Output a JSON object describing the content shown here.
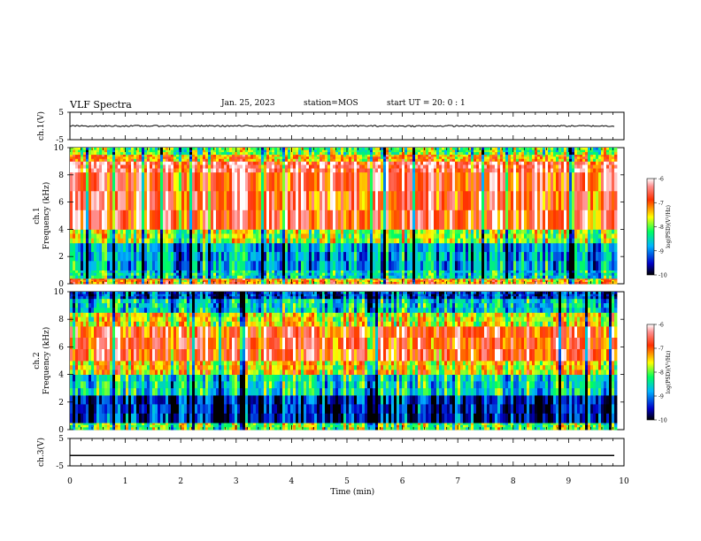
{
  "header": {
    "title": "VLF Spectra",
    "date": "Jan. 25, 2023",
    "station": "station=MOS",
    "start_ut": "start UT =  20: 0  : 1"
  },
  "chart_data": [
    {
      "type": "line",
      "name": "ch1-waveform",
      "ylabel": "ch.1(V)",
      "ylim": [
        -5,
        5
      ],
      "yticks": [
        "5",
        "-5"
      ],
      "series": [
        {
          "description": "near-constant trace with small noise",
          "approx_value": 0
        }
      ]
    },
    {
      "type": "heatmap",
      "name": "ch1-spectrogram",
      "ylabel_line1": "ch.1",
      "ylabel_line2": "Frequency (kHz)",
      "ylim": [
        0,
        10
      ],
      "yticks": [
        "0",
        "2",
        "4",
        "6",
        "8",
        "10"
      ],
      "colorbar": {
        "label": "log(PSD)(V²/Hz)",
        "range": [
          -10,
          -6
        ],
        "ticks": [
          "-6",
          "-7",
          "-8",
          "-9",
          "-10"
        ]
      },
      "bands_khz_log_psd": [
        [
          0.0,
          0.4,
          -7.2
        ],
        [
          0.4,
          1.0,
          -8.5
        ],
        [
          1.0,
          3.0,
          -8.8
        ],
        [
          3.0,
          4.0,
          -7.8
        ],
        [
          4.0,
          8.2,
          -6.7
        ],
        [
          8.2,
          9.0,
          -6.5
        ],
        [
          9.0,
          9.5,
          -7.3
        ],
        [
          9.5,
          10.0,
          -8.0
        ]
      ]
    },
    {
      "type": "heatmap",
      "name": "ch2-spectrogram",
      "ylabel_line1": "ch.2",
      "ylabel_line2": "Frequency (kHz)",
      "ylim": [
        0,
        10
      ],
      "yticks": [
        "0",
        "2",
        "4",
        "6",
        "8",
        "10"
      ],
      "colorbar": {
        "label": "log(PSD)(V²/Hz)",
        "range": [
          -10,
          -6
        ],
        "ticks": [
          "-6",
          "-7",
          "-8",
          "-9",
          "-10"
        ]
      },
      "bands_khz_log_psd": [
        [
          0.0,
          0.5,
          -8.0
        ],
        [
          0.5,
          2.5,
          -9.5
        ],
        [
          2.5,
          4.0,
          -8.5
        ],
        [
          4.0,
          5.0,
          -7.5
        ],
        [
          5.0,
          7.5,
          -6.8
        ],
        [
          7.5,
          8.5,
          -7.6
        ],
        [
          8.5,
          9.5,
          -8.6
        ],
        [
          9.5,
          10.0,
          -9.3
        ]
      ]
    },
    {
      "type": "line",
      "name": "ch3-waveform",
      "ylabel": "ch.3(V)",
      "ylim": [
        -5,
        5
      ],
      "yticks": [
        "5",
        "-5"
      ],
      "series": [
        {
          "description": "flat trace",
          "approx_value": -1.2
        }
      ]
    }
  ],
  "xaxis": {
    "label": "Time (min)",
    "range": [
      0,
      10
    ],
    "ticks": [
      "0",
      "1",
      "2",
      "3",
      "4",
      "5",
      "6",
      "7",
      "8",
      "9",
      "10"
    ],
    "data_end_min": 9.83
  }
}
